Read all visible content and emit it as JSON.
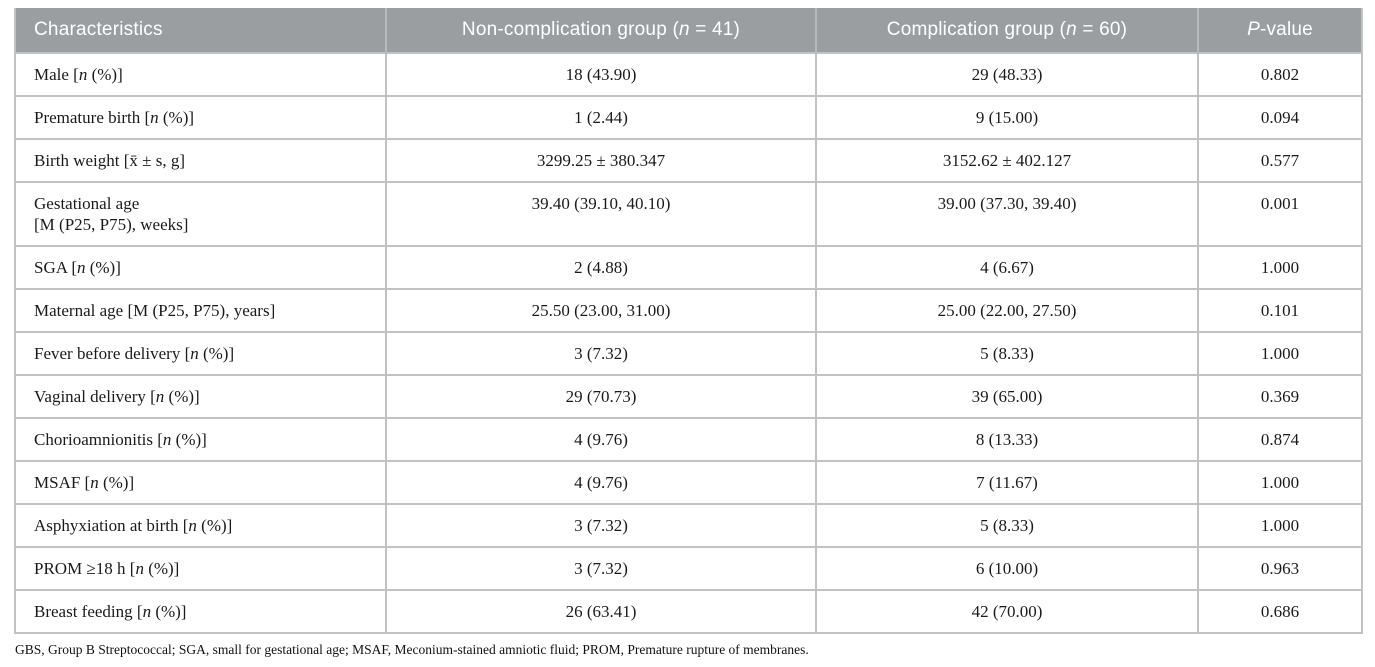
{
  "colors": {
    "header_bg": "#9a9ea1",
    "header_text": "#ffffff",
    "header_divider": "#b6b9bb",
    "cell_border": "#c0c3c4",
    "body_text": "#1a1a1a"
  },
  "table": {
    "columns": [
      {
        "key": "characteristics",
        "label": "Characteristics"
      },
      {
        "key": "non_complication",
        "label": "Non-complication group (*n* = 41)"
      },
      {
        "key": "complication",
        "label": "Complication group (*n* = 60)"
      },
      {
        "key": "p_value",
        "label": "*P*-value"
      }
    ],
    "rows": [
      {
        "characteristic": "Male [*n* (%)]",
        "non_complication": "18 (43.90)",
        "complication": "29 (48.33)",
        "p_value": "0.802"
      },
      {
        "characteristic": "Premature birth [*n* (%)]",
        "non_complication": "1 (2.44)",
        "complication": "9 (15.00)",
        "p_value": "0.094"
      },
      {
        "characteristic": "Birth weight [x̄ ± s, g]",
        "non_complication": "3299.25 ± 380.347",
        "complication": "3152.62 ± 402.127",
        "p_value": "0.577"
      },
      {
        "characteristic": "Gestational age\n[M (P25, P75), weeks]",
        "non_complication": "39.40 (39.10, 40.10)",
        "complication": "39.00 (37.30, 39.40)",
        "p_value": "0.001"
      },
      {
        "characteristic": "SGA [*n* (%)]",
        "non_complication": "2 (4.88)",
        "complication": "4 (6.67)",
        "p_value": "1.000"
      },
      {
        "characteristic": "Maternal age [M (P25, P75), years]",
        "non_complication": "25.50 (23.00, 31.00)",
        "complication": "25.00 (22.00, 27.50)",
        "p_value": "0.101"
      },
      {
        "characteristic": "Fever before delivery [*n* (%)]",
        "non_complication": "3 (7.32)",
        "complication": "5 (8.33)",
        "p_value": "1.000"
      },
      {
        "characteristic": "Vaginal delivery [*n* (%)]",
        "non_complication": "29 (70.73)",
        "complication": "39 (65.00)",
        "p_value": "0.369"
      },
      {
        "characteristic": "Chorioamnionitis [*n* (%)]",
        "non_complication": "4 (9.76)",
        "complication": "8 (13.33)",
        "p_value": "0.874"
      },
      {
        "characteristic": "MSAF [*n* (%)]",
        "non_complication": "4 (9.76)",
        "complication": "7 (11.67)",
        "p_value": "1.000"
      },
      {
        "characteristic": "Asphyxiation at birth [*n* (%)]",
        "non_complication": "3 (7.32)",
        "complication": "5 (8.33)",
        "p_value": "1.000"
      },
      {
        "characteristic": "PROM ≥18 h [*n* (%)]",
        "non_complication": "3 (7.32)",
        "complication": "6 (10.00)",
        "p_value": "0.963"
      },
      {
        "characteristic": "Breast feeding [*n* (%)]",
        "non_complication": "26 (63.41)",
        "complication": "42 (70.00)",
        "p_value": "0.686"
      }
    ]
  },
  "footnote": "GBS, Group B Streptococcal; SGA, small for gestational age; MSAF, Meconium-stained amniotic fluid; PROM, Premature rupture of membranes."
}
